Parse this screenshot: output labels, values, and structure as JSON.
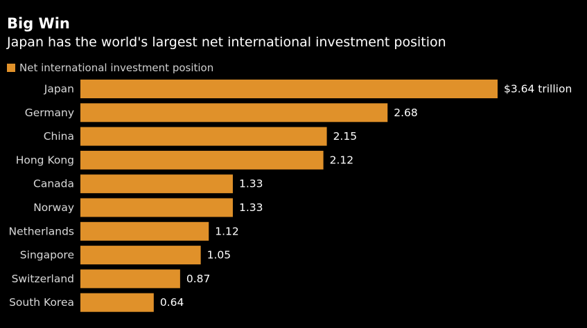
{
  "chart_data": {
    "type": "bar",
    "orientation": "horizontal",
    "title": "Big Win",
    "subtitle": "Japan has the world's largest net international investment position",
    "legend": [
      "Net international investment position"
    ],
    "legend_position": "top-left",
    "grid": false,
    "categories": [
      "Japan",
      "Germany",
      "China",
      "Hong Kong",
      "Canada",
      "Norway",
      "Netherlands",
      "Singapore",
      "Switzerland",
      "South Korea"
    ],
    "values": [
      3.64,
      2.68,
      2.15,
      2.12,
      1.33,
      1.33,
      1.12,
      1.05,
      0.87,
      0.64
    ],
    "value_labels": [
      "$3.64 trillion",
      "2.68",
      "2.15",
      "2.12",
      "1.33",
      "1.33",
      "1.12",
      "1.05",
      "0.87",
      "0.64"
    ],
    "xlim": [
      0,
      3.64
    ],
    "colors": {
      "bar": "#e0912a",
      "background": "#000000",
      "text": "#ffffff",
      "category_text": "#d9d9d9",
      "legend_text": "#cfcfcf"
    }
  }
}
